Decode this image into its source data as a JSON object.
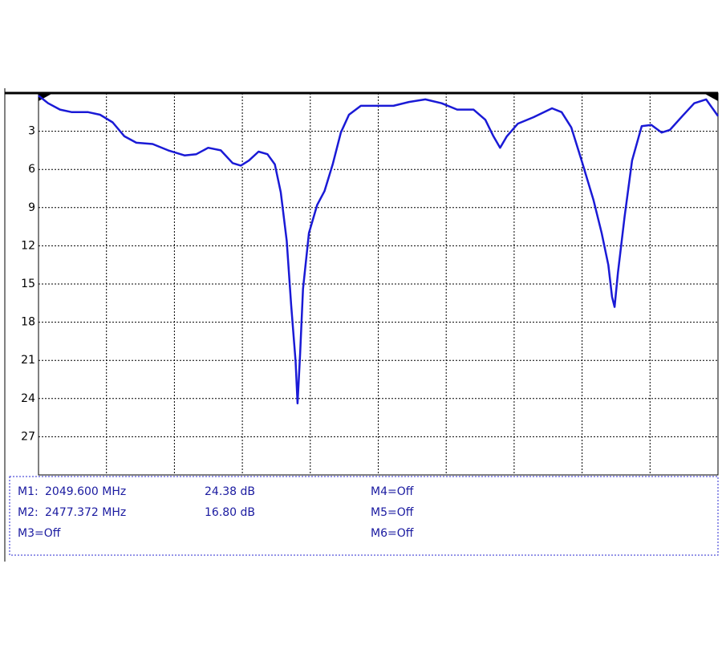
{
  "chart_data": {
    "type": "line",
    "x": [
      1700,
      1713,
      1729,
      1745,
      1767,
      1783,
      1800,
      1816,
      1832,
      1854,
      1875,
      1897,
      1913,
      1929,
      1946,
      1962,
      1973,
      1984,
      1997,
      2009,
      2019,
      2027,
      2035,
      2041,
      2047,
      2049.6,
      2053,
      2057,
      2065,
      2076,
      2086,
      2097,
      2108,
      2119,
      2135,
      2157,
      2179,
      2200,
      2222,
      2244,
      2265,
      2287,
      2303,
      2314,
      2323,
      2332,
      2347,
      2368,
      2393,
      2406,
      2419,
      2433,
      2449,
      2460,
      2469,
      2474,
      2477.4,
      2482,
      2491,
      2501,
      2514,
      2527,
      2541,
      2552,
      2569,
      2585,
      2601,
      2617
    ],
    "series": [
      {
        "color": "#1a1ad6",
        "values": [
          0.2,
          0.8,
          1.3,
          1.5,
          1.5,
          1.7,
          2.3,
          3.4,
          3.9,
          4.0,
          4.5,
          4.9,
          4.8,
          4.3,
          4.5,
          5.5,
          5.7,
          5.3,
          4.6,
          4.8,
          5.6,
          7.8,
          11.6,
          16.7,
          21.1,
          24.38,
          20.5,
          15.4,
          11.0,
          8.8,
          7.7,
          5.6,
          3.1,
          1.7,
          1.0,
          1.0,
          1.0,
          0.7,
          0.5,
          0.8,
          1.3,
          1.3,
          2.1,
          3.4,
          4.3,
          3.4,
          2.4,
          1.9,
          1.2,
          1.5,
          2.7,
          5.3,
          8.4,
          11.0,
          13.5,
          16.0,
          16.8,
          14.1,
          9.7,
          5.3,
          2.6,
          2.5,
          3.1,
          2.9,
          1.8,
          0.8,
          0.5,
          1.8
        ]
      }
    ],
    "xlim": [
      1700,
      2617
    ],
    "ylim": [
      30,
      0
    ],
    "yticks": [
      3,
      6,
      9,
      12,
      15,
      18,
      21,
      24,
      27
    ],
    "grid": true
  },
  "marker_table": {
    "rows": [
      {
        "name": "M1:",
        "freq": "2049.600 MHz",
        "level": "24.38 dB",
        "other": "M4=Off"
      },
      {
        "name": "M2:",
        "freq": "2477.372 MHz",
        "level": "16.80 dB",
        "other": "M5=Off"
      }
    ],
    "off": [
      "M3=Off",
      "M6=Off"
    ]
  }
}
